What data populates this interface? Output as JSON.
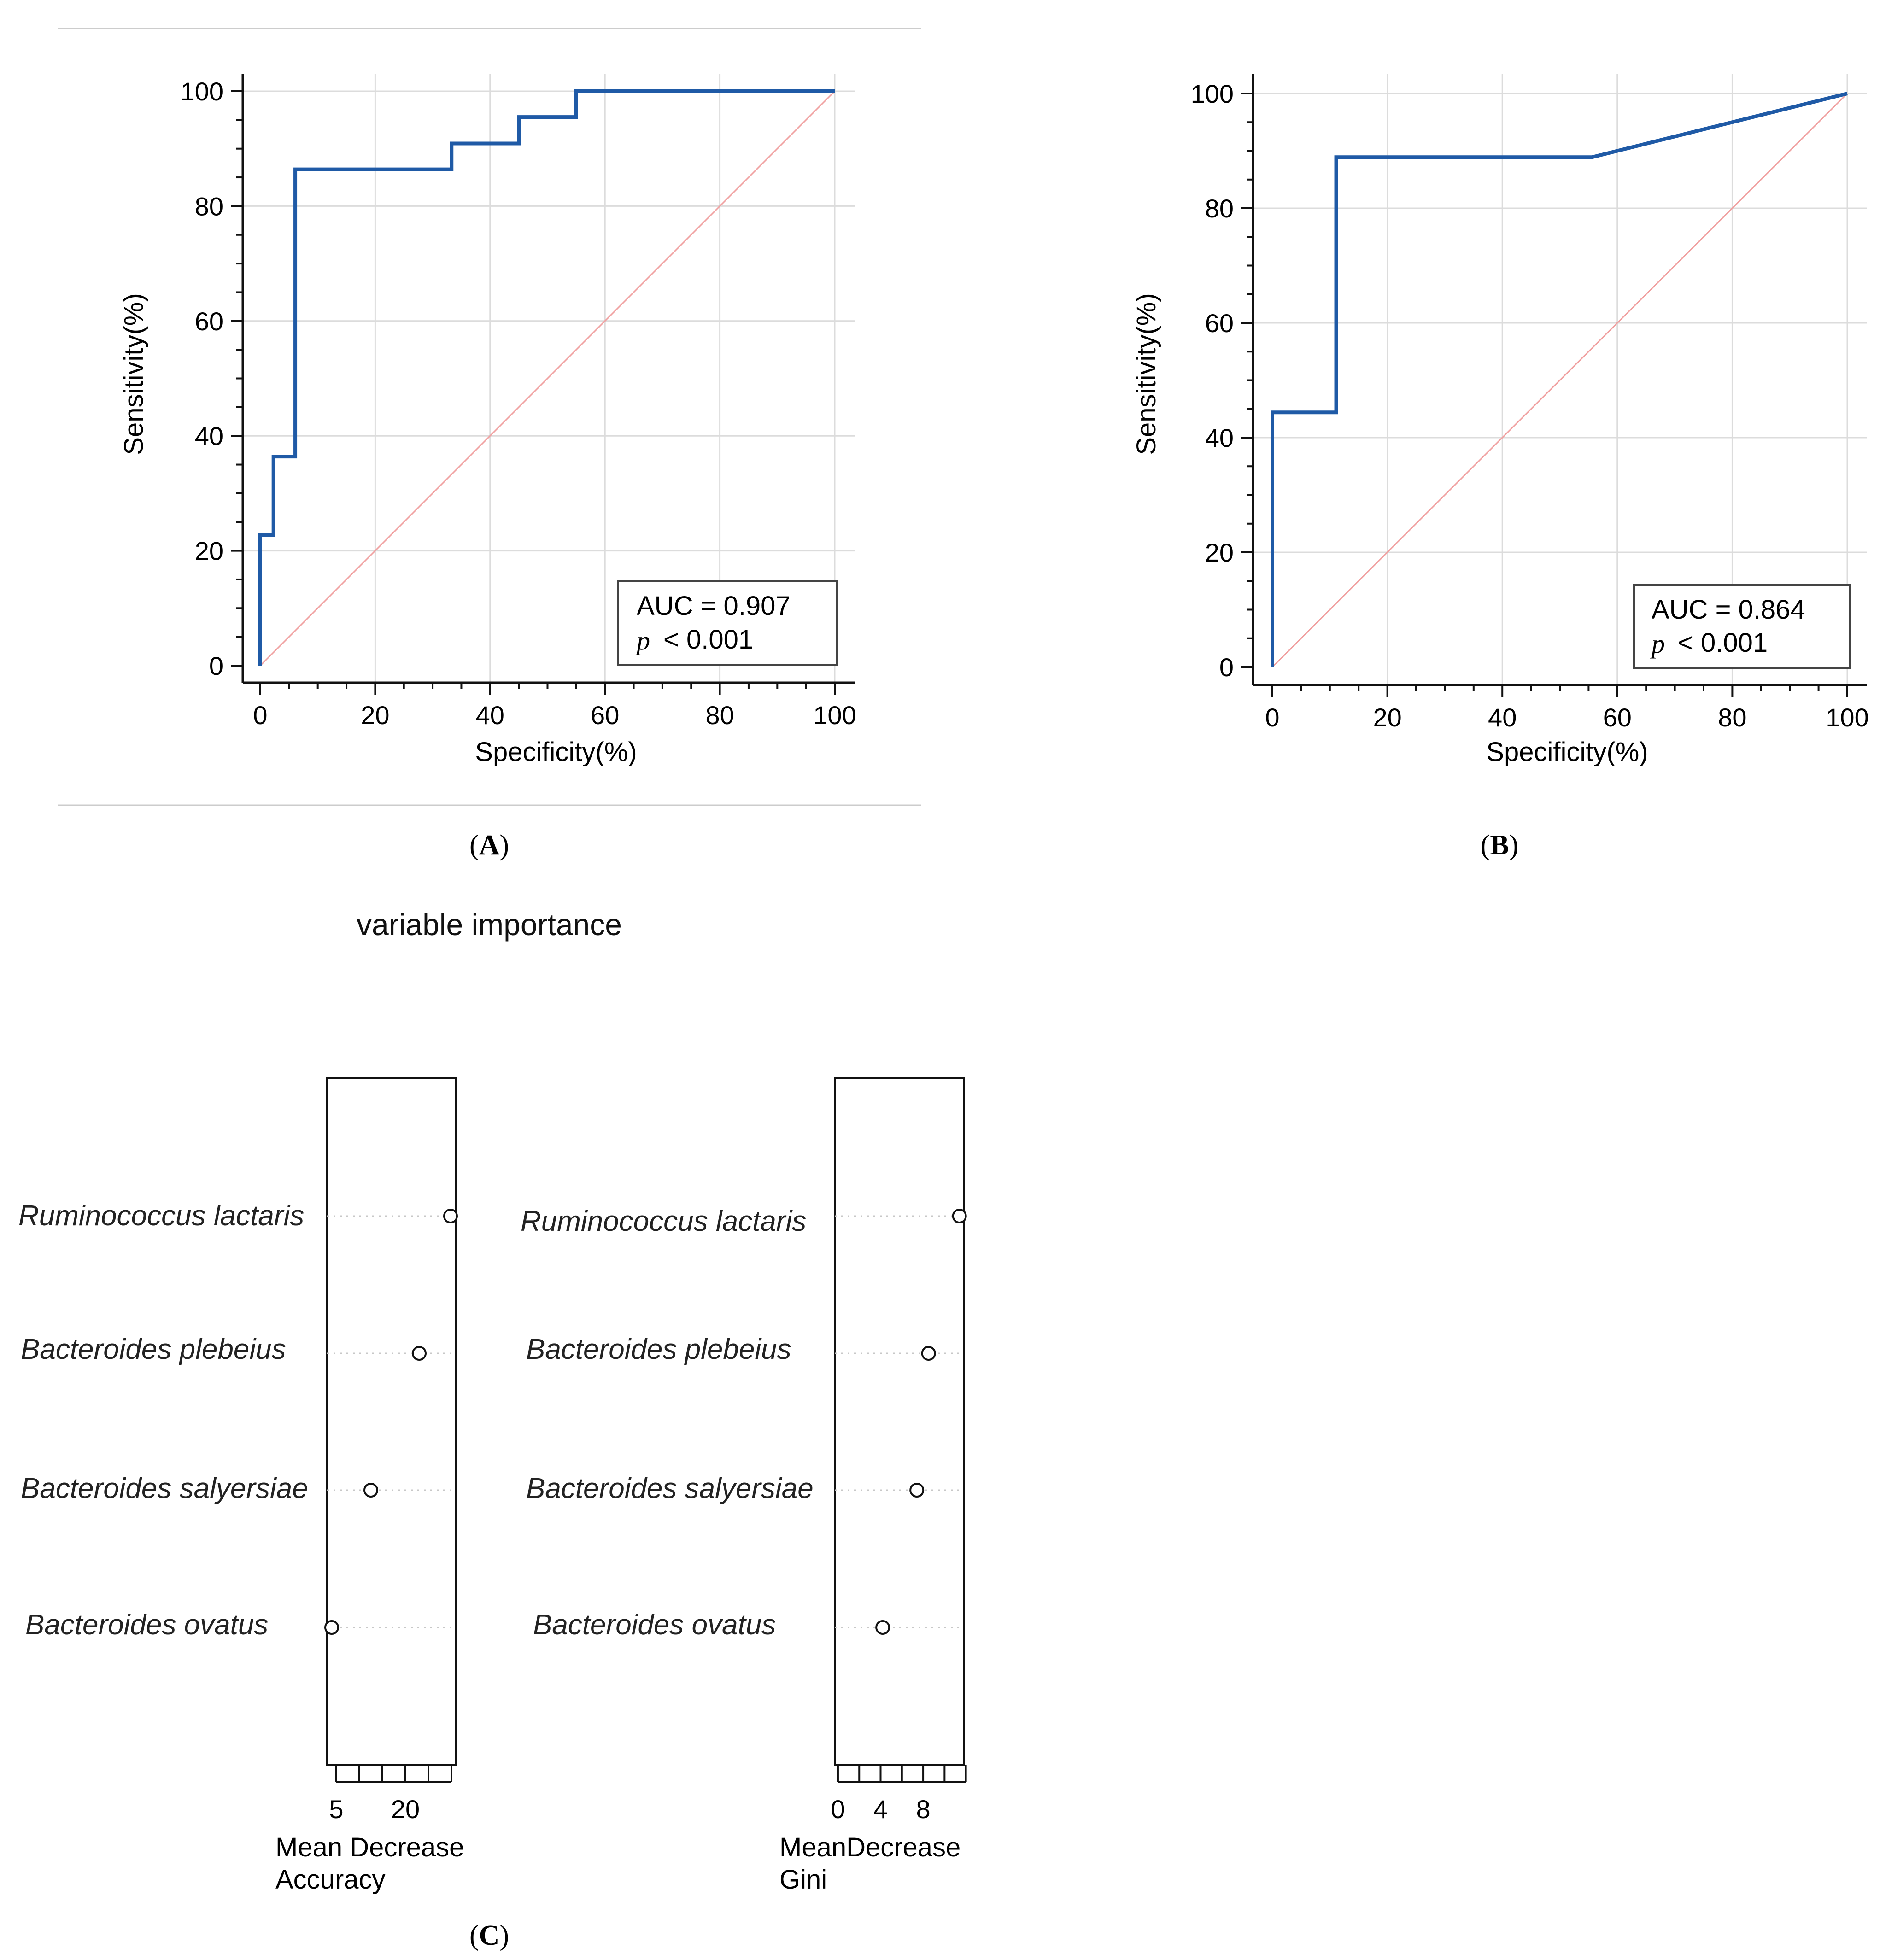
{
  "chart_data": [
    {
      "type": "line",
      "panel": "A",
      "panel_label": "A",
      "xlabel": "Specificity(%)",
      "ylabel": "Sensitivity(%)",
      "xlim": [
        0,
        100
      ],
      "ylim": [
        0,
        100
      ],
      "xticks": [
        0,
        20,
        40,
        60,
        80,
        100
      ],
      "yticks": [
        0,
        20,
        40,
        60,
        80,
        100
      ],
      "grid": true,
      "annotation": {
        "auc": "AUC = 0.907",
        "p_symbol": "p",
        "p_value": "< 0.001"
      },
      "series": [
        {
          "name": "ROC",
          "color": "#1f5aa6",
          "x": [
            0,
            0,
            2.3,
            2.3,
            6.1,
            6.1,
            33.3,
            33.3,
            45.0,
            45.0,
            55.0,
            55.0,
            100
          ],
          "y": [
            0,
            22.7,
            22.7,
            36.4,
            36.4,
            86.4,
            86.4,
            90.9,
            90.9,
            95.5,
            95.5,
            100,
            100
          ]
        },
        {
          "name": "Reference",
          "color": "#f0a0a0",
          "x": [
            0,
            100
          ],
          "y": [
            0,
            100
          ]
        }
      ]
    },
    {
      "type": "line",
      "panel": "B",
      "panel_label": "B",
      "xlabel": "Specificity(%)",
      "ylabel": "Sensitivity(%)",
      "xlim": [
        0,
        100
      ],
      "ylim": [
        0,
        100
      ],
      "xticks": [
        0,
        20,
        40,
        60,
        80,
        100
      ],
      "yticks": [
        0,
        20,
        40,
        60,
        80,
        100
      ],
      "grid": true,
      "annotation": {
        "auc": "AUC = 0.864",
        "p_symbol": "p",
        "p_value": "< 0.001"
      },
      "series": [
        {
          "name": "ROC",
          "color": "#1f5aa6",
          "x": [
            0,
            0,
            11.1,
            11.1,
            55.6,
            100
          ],
          "y": [
            0,
            44.4,
            44.4,
            88.9,
            88.9,
            100
          ]
        },
        {
          "name": "Reference",
          "color": "#f0a0a0",
          "x": [
            0,
            100
          ],
          "y": [
            0,
            100
          ]
        }
      ]
    },
    {
      "type": "scatter",
      "panel": "C",
      "panel_label": "C",
      "title": "variable importance",
      "categories": [
        "Ruminococcus lactaris",
        "Bacteroides plebeius",
        "Bacteroides salyersiae",
        "Bacteroides ovatus"
      ],
      "subplots": [
        {
          "xlabel_line1": "Mean Decrease",
          "xlabel_line2": "Accuracy",
          "xlim": [
            3,
            31
          ],
          "minor_ticks": [
            5,
            10,
            15,
            20,
            25,
            30
          ],
          "tick_labels": [
            {
              "value": 5,
              "label": "5"
            },
            {
              "value": 20,
              "label": "20"
            }
          ],
          "values": [
            29.8,
            23.0,
            12.5,
            4.0
          ]
        },
        {
          "xlabel_line1": "MeanDecrease",
          "xlabel_line2": "Gini",
          "xlim": [
            -0.3,
            11.8
          ],
          "minor_ticks": [
            0,
            2,
            4,
            6,
            8,
            10,
            12
          ],
          "tick_labels": [
            {
              "value": 0,
              "label": "0"
            },
            {
              "value": 4,
              "label": "4"
            },
            {
              "value": 8,
              "label": "8"
            }
          ],
          "values": [
            11.4,
            8.5,
            7.4,
            4.2
          ]
        }
      ]
    }
  ]
}
